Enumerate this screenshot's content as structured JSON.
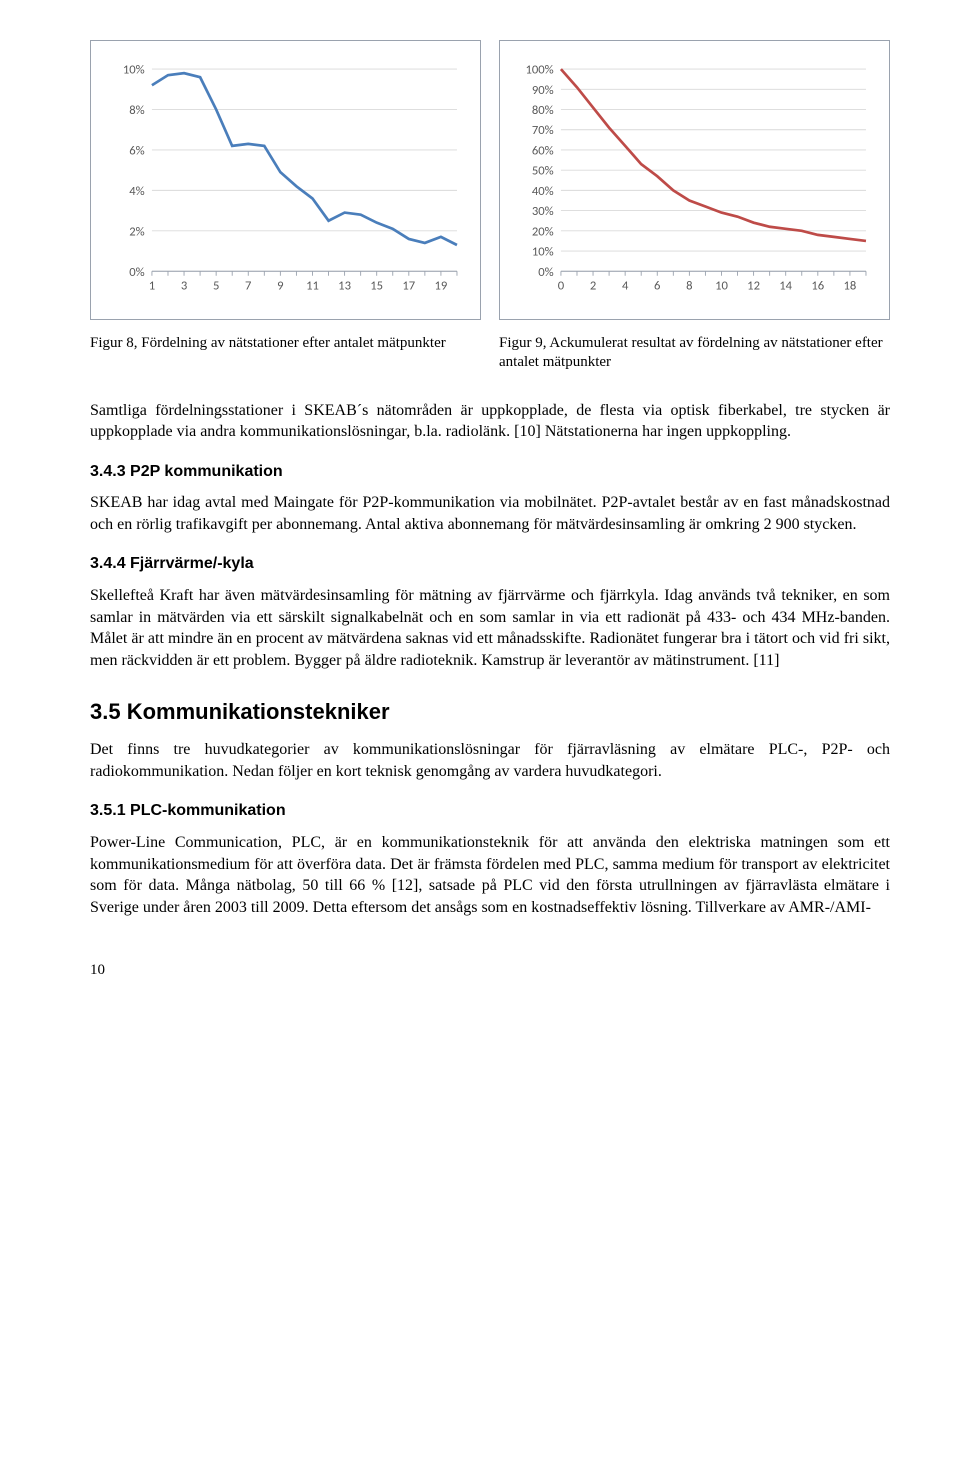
{
  "chart_left": {
    "type": "line",
    "x_values": [
      1,
      2,
      3,
      4,
      5,
      6,
      7,
      8,
      9,
      10,
      11,
      12,
      13,
      14,
      15,
      16,
      17,
      18,
      19,
      20
    ],
    "y_values": [
      9.2,
      9.7,
      9.8,
      9.6,
      8.0,
      6.2,
      6.3,
      6.2,
      4.9,
      4.2,
      3.6,
      2.5,
      2.9,
      2.8,
      2.4,
      2.1,
      1.6,
      1.4,
      1.7,
      1.3
    ],
    "y_ticks": [
      0,
      2,
      4,
      6,
      8,
      10
    ],
    "y_tick_labels": [
      "0%",
      "2%",
      "4%",
      "6%",
      "8%",
      "10%"
    ],
    "x_ticks": [
      1,
      3,
      5,
      7,
      9,
      11,
      13,
      15,
      17,
      19
    ],
    "xlim": [
      1,
      20
    ],
    "ylim": [
      0,
      10
    ],
    "line_color": "#4a7ebb",
    "line_width": 3,
    "grid_color": "#d9d9d9",
    "axis_color": "#9aa2ae",
    "tick_font_family": "Calibri",
    "tick_font_size": 14,
    "tick_font_color": "#595959",
    "background_color": "#ffffff"
  },
  "chart_right": {
    "type": "line",
    "x_values": [
      0,
      1,
      2,
      3,
      4,
      5,
      6,
      7,
      8,
      9,
      10,
      11,
      12,
      13,
      14,
      15,
      16,
      17,
      18,
      19
    ],
    "y_values": [
      100,
      91,
      81,
      71,
      62,
      53,
      47,
      40,
      35,
      32,
      29,
      27,
      24,
      22,
      21,
      20,
      18,
      17,
      16,
      15
    ],
    "y_ticks": [
      0,
      10,
      20,
      30,
      40,
      50,
      60,
      70,
      80,
      90,
      100
    ],
    "y_tick_labels": [
      "0%",
      "10%",
      "20%",
      "30%",
      "40%",
      "50%",
      "60%",
      "70%",
      "80%",
      "90%",
      "100%"
    ],
    "x_ticks": [
      0,
      2,
      4,
      6,
      8,
      10,
      12,
      14,
      16,
      18
    ],
    "xlim": [
      0,
      19
    ],
    "ylim": [
      0,
      100
    ],
    "line_color": "#be4b48",
    "line_width": 3,
    "grid_color": "#d9d9d9",
    "axis_color": "#9aa2ae",
    "tick_font_family": "Calibri",
    "tick_font_size": 14,
    "tick_font_color": "#595959",
    "background_color": "#ffffff"
  },
  "captions": {
    "left": "Figur 8, Fördelning av nätstationer efter antalet mätpunkter",
    "right": "Figur 9, Ackumulerat resultat av fördelning av nätstationer efter antalet mätpunkter"
  },
  "body": {
    "p1": "Samtliga fördelningsstationer i SKEAB´s nätområden är uppkopplade, de flesta via optisk fiberkabel, tre stycken är uppkopplade via andra kommunikationslösningar, b.la. radiolänk. [10] Nätstationerna har ingen uppkoppling.",
    "h_p2p": "3.4.3 P2P kommunikation",
    "p2": "SKEAB har idag avtal med Maingate för P2P-kommunikation via mobilnätet. P2P-avtalet består av en fast månadskostnad och en rörlig trafikavgift per abonnemang. Antal aktiva abonnemang för mätvärdesinsamling är omkring 2 900 stycken.",
    "h_fjarr": "3.4.4 Fjärrvärme/-kyla",
    "p3": "Skellefteå Kraft har även mätvärdesinsamling för mätning av fjärrvärme och fjärrkyla. Idag används två tekniker, en som samlar in mätvärden via ett särskilt signalkabelnät och en som samlar in via ett radionät på 433- och 434 MHz-banden. Målet är att mindre än en procent av mätvärdena saknas vid ett månadsskifte. Radionätet fungerar bra i tätort och vid fri sikt, men räckvidden är ett problem. Bygger på äldre radioteknik. Kamstrup är leverantör av mätinstrument. [11]",
    "h_35": "3.5  Kommunikationstekniker",
    "p4": "Det finns tre huvudkategorier av kommunikationslösningar för fjärravläsning av elmätare PLC-, P2P- och radiokommunikation. Nedan följer en kort teknisk genomgång av vardera huvudkategori.",
    "h_plc": "3.5.1 PLC-kommunikation",
    "p5": "Power-Line Communication, PLC, är en kommunikationsteknik för att använda den elektriska matningen som ett kommunikationsmedium för att överföra data. Det är främsta fördelen med PLC, samma medium för transport av elektricitet som för data. Många nätbolag, 50 till 66 % [12], satsade på PLC vid den första utrullningen av fjärravlästa elmätare i Sverige under åren 2003 till 2009. Detta eftersom det ansågs som en kostnadseffektiv lösning. Tillverkare av AMR-/AMI-"
  },
  "page_number": "10"
}
